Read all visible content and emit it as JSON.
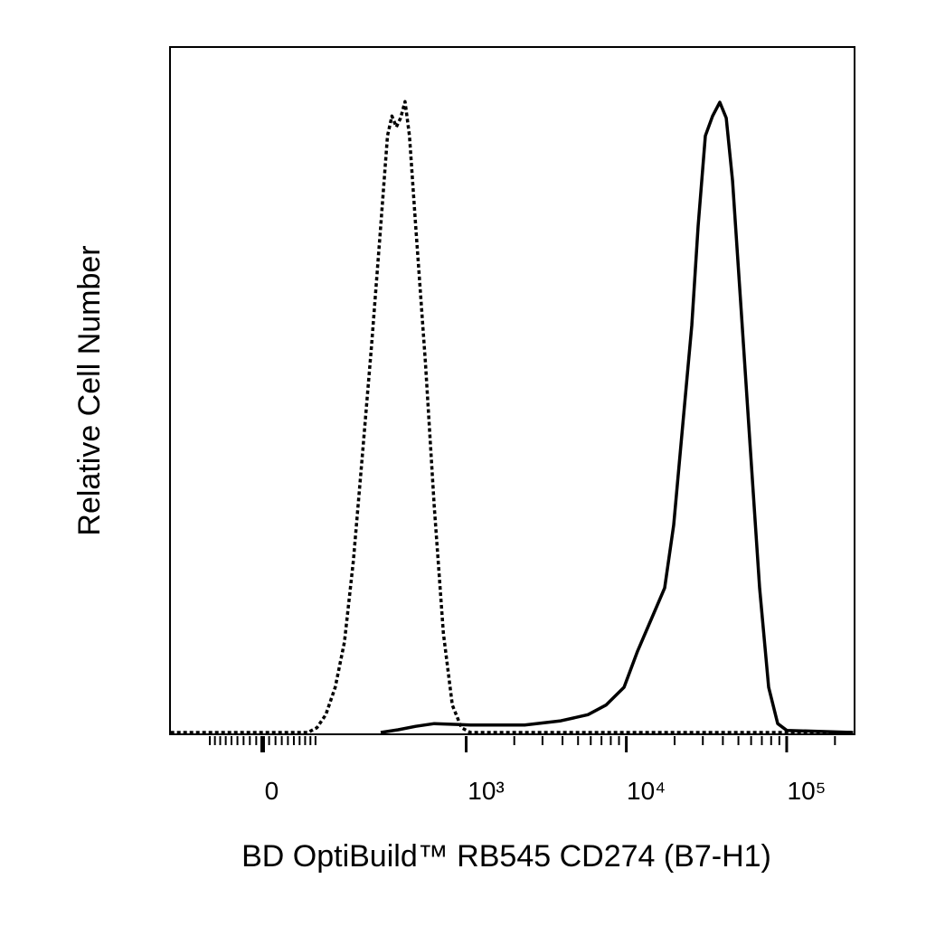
{
  "chart_data": {
    "type": "histogram-overlay",
    "xlabel": "BD OptiBuild™ RB545 CD274 (B7-H1)",
    "ylabel": "Relative Cell Number",
    "xscale": "biexponential",
    "xlim": [
      -190,
      265000
    ],
    "ylim": [
      0,
      100
    ],
    "xticks": [
      0,
      {
        "value": 1000,
        "label": "10³"
      },
      {
        "value": 10000,
        "label": "10⁴"
      },
      {
        "value": 100000,
        "label": "10⁵"
      }
    ],
    "xminorticks": [
      -90,
      -80,
      -70,
      -60,
      -50,
      -40,
      -30,
      -20,
      -10,
      10,
      20,
      30,
      40,
      50,
      60,
      70,
      80,
      90,
      2000,
      3000,
      4000,
      5000,
      6000,
      7000,
      8000,
      9000,
      20000,
      30000,
      40000,
      50000,
      60000,
      70000,
      80000,
      90000,
      200000
    ],
    "series": [
      {
        "style": "dotted",
        "color": "#000000",
        "x": [
          -188,
          75,
          93,
          112,
          134,
          158,
          184,
          214,
          247,
          284,
          315,
          337,
          360,
          384,
          410,
          438,
          480,
          553,
          630,
          719,
          819,
          934,
          1064,
          260000
        ],
        "values": [
          0,
          0,
          0.7,
          2.6,
          6.6,
          13.2,
          25.1,
          40.9,
          56.7,
          73.9,
          87.1,
          90.0,
          88.4,
          89.7,
          92.1,
          87.1,
          73.9,
          54.1,
          33.0,
          14.5,
          4.0,
          0.7,
          0,
          0
        ]
      },
      {
        "style": "solid",
        "color": "#000000",
        "x": [
          284,
          370,
          480,
          630,
          1064,
          2323,
          3904,
          5762,
          7465,
          9677,
          11760,
          14290,
          17350,
          19750,
          22490,
          25600,
          28050,
          31100,
          34520,
          38300,
          41960,
          45950,
          52330,
          59560,
          67820,
          77220,
          87910,
          100100,
          260000
        ],
        "values": [
          0,
          0.4,
          0.9,
          1.3,
          1.1,
          1.1,
          1.7,
          2.6,
          4.0,
          6.6,
          11.9,
          16.5,
          21.1,
          30.3,
          44.9,
          59.4,
          73.9,
          87.1,
          90.0,
          92.0,
          89.7,
          80.5,
          60.7,
          40.9,
          21.1,
          6.6,
          1.3,
          0.3,
          0
        ]
      }
    ]
  }
}
